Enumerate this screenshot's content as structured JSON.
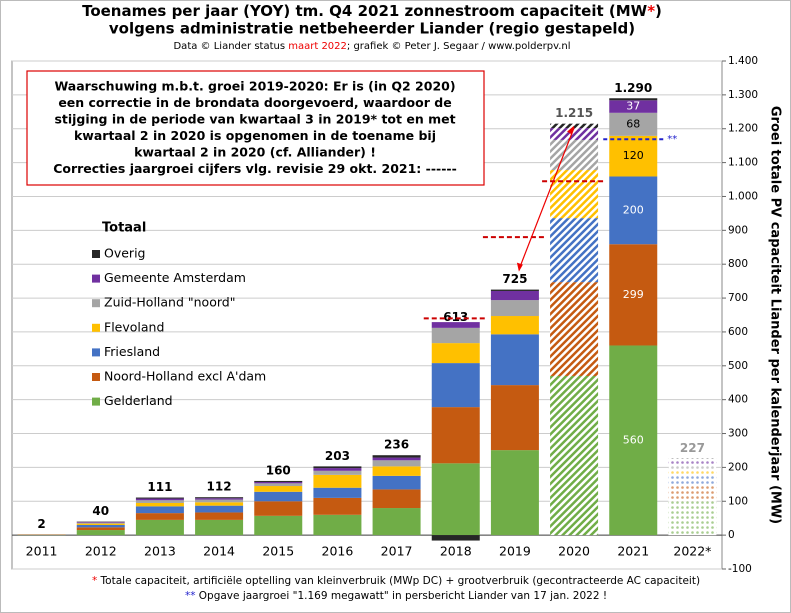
{
  "chart_data": {
    "type": "stacked_bar",
    "title": [
      "Toenames per jaar (YOY) tm. Q4 2021 zonnestroom capaciteit (MW",
      "*",
      ")"
    ],
    "title_line2": "volgens administratie netbeheerder Liander (regio gestapeld)",
    "subtitle": [
      "Data © Liander status ",
      "maart 2022",
      "; grafiek © Peter J. Segaar / www.polderpv.nl"
    ],
    "y_label": "Groei totale PV capaciteit Liander per kalenderjaar (MW)",
    "legend_title": "Totaal",
    "categories": [
      "2011",
      "2012",
      "2013",
      "2014",
      "2015",
      "2016",
      "2017",
      "2018",
      "2019",
      "2020",
      "2021",
      "2022*"
    ],
    "patterns": [
      "solid",
      "solid",
      "solid",
      "solid",
      "solid",
      "solid",
      "solid",
      "solid",
      "solid",
      "hatched",
      "solid",
      "dotted"
    ],
    "series": [
      {
        "name": "Gelderland",
        "color": "#70ad47",
        "values": [
          1,
          15,
          45,
          45,
          57,
          60,
          80,
          212,
          251,
          470,
          560,
          100
        ]
      },
      {
        "name": "Noord-Holland excl A'dam",
        "color": "#c55a11",
        "values": [
          1,
          8,
          20,
          22,
          43,
          50,
          55,
          166,
          192,
          277,
          299,
          45
        ]
      },
      {
        "name": "Friesland",
        "color": "#4472c4",
        "values": [
          0,
          7,
          20,
          20,
          28,
          30,
          40,
          130,
          150,
          189,
          200,
          30
        ]
      },
      {
        "name": "Flevoland",
        "color": "#ffc000",
        "values": [
          0,
          4,
          10,
          10,
          17,
          38,
          28,
          59,
          54,
          142,
          120,
          20
        ]
      },
      {
        "name": "Zuid-Holland \"noord\"",
        "color": "#a5a5a5",
        "values": [
          0,
          3,
          8,
          8,
          8,
          12,
          18,
          45,
          47,
          89,
          68,
          15
        ]
      },
      {
        "name": "Gemeente Amsterdam",
        "color": "#7030a0",
        "values": [
          0,
          2,
          5,
          4,
          4,
          8,
          8,
          17,
          27,
          35,
          37,
          10
        ]
      },
      {
        "name": "Overig",
        "color": "#262626",
        "values": [
          0,
          1,
          3,
          3,
          3,
          5,
          7,
          -16,
          4,
          13,
          6,
          7
        ]
      }
    ],
    "totals": {
      "values": [
        2,
        40,
        111,
        112,
        160,
        203,
        236,
        613,
        725,
        1215,
        1290,
        227
      ],
      "value_labels": [
        "2",
        "40",
        "111",
        "112",
        "160",
        "203",
        "236",
        "613",
        "725",
        "1.215",
        "1.290",
        "227"
      ]
    },
    "revisions": [
      null,
      null,
      null,
      null,
      null,
      null,
      null,
      640,
      880,
      1045,
      null,
      null
    ],
    "reported": {
      "value": 1169,
      "label": "**"
    },
    "ylim": [
      -100,
      1400
    ],
    "yticks": [
      -100,
      0,
      100,
      200,
      300,
      400,
      500,
      600,
      700,
      800,
      900,
      {
        "value": 1000,
        "label": "1.000"
      },
      {
        "value": 1100,
        "label": "1.100"
      },
      {
        "value": 1200,
        "label": "1.200"
      },
      {
        "value": 1300,
        "label": "1.300"
      },
      {
        "value": 1400,
        "label": "1.400"
      }
    ],
    "grid": true,
    "warning": [
      "Waarschuwing  m.b.t. groei  2019-2020:  Er is (in Q2 2020)",
      "een correctie in de brondata doorgevoerd, waardoor de",
      "stijging in de periode van kwartaal  3 in 2019*  tot en met",
      "kwartaal  2 in 2020 is opgenomen in de toename bij",
      "kwartaal  2 in 2020 (cf. Alliander)  !",
      "Correcties jaargroei cijfers vlg. revisie 29 okt. 2021: ------"
    ],
    "footnotes": [
      [
        "*",
        " Totale capaciteit, artificiële optelling van kleinverbruik (MWp DC) + grootverbruik (gecontracteerde AC capaciteit)"
      ],
      [
        "**",
        " Opgave jaargroei \"1.169 megawatt\" in persbericht Liander van 17 jan. 2022 !"
      ]
    ]
  }
}
